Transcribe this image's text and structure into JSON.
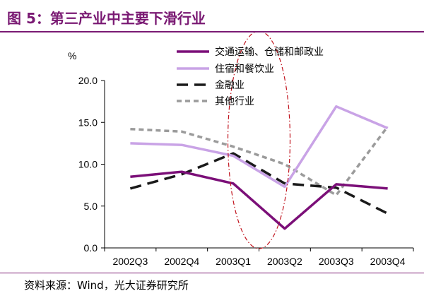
{
  "title": "图 5：第三产业中主要下滑行业",
  "source": "资料来源：Wind，光大证券研究所",
  "chart_data": {
    "type": "line",
    "unit_label": "%",
    "categories": [
      "2002Q3",
      "2002Q4",
      "2003Q1",
      "2003Q2",
      "2003Q3",
      "2003Q4"
    ],
    "ylim": [
      0,
      20
    ],
    "yticks": [
      "0.0",
      "5.0",
      "10.0",
      "15.0",
      "20.0"
    ],
    "ytick_values": [
      0,
      5,
      10,
      15,
      20
    ],
    "grid": false,
    "legend_position": "top-right",
    "series": [
      {
        "name": "交通运输、仓储和邮政业",
        "values": [
          8.5,
          9.1,
          7.7,
          2.3,
          7.6,
          7.1
        ],
        "color": "#7b0f78",
        "style": "solid"
      },
      {
        "name": "住宿和餐饮业",
        "values": [
          12.5,
          12.3,
          11.0,
          7.3,
          16.9,
          14.3
        ],
        "color": "#c9a3e6",
        "style": "solid"
      },
      {
        "name": "金融业",
        "values": [
          7.1,
          8.8,
          11.3,
          7.7,
          7.2,
          4.1
        ],
        "color": "#1a1a1a",
        "style": "long-dash"
      },
      {
        "name": "其他行业",
        "values": [
          14.2,
          13.9,
          12.1,
          10.0,
          6.3,
          14.5
        ],
        "color": "#9b9b9b",
        "style": "short-dash"
      }
    ],
    "annotation": {
      "shape": "ellipse",
      "color": "#c0121c",
      "style": "dash-dot",
      "category": "2003Q2"
    }
  }
}
